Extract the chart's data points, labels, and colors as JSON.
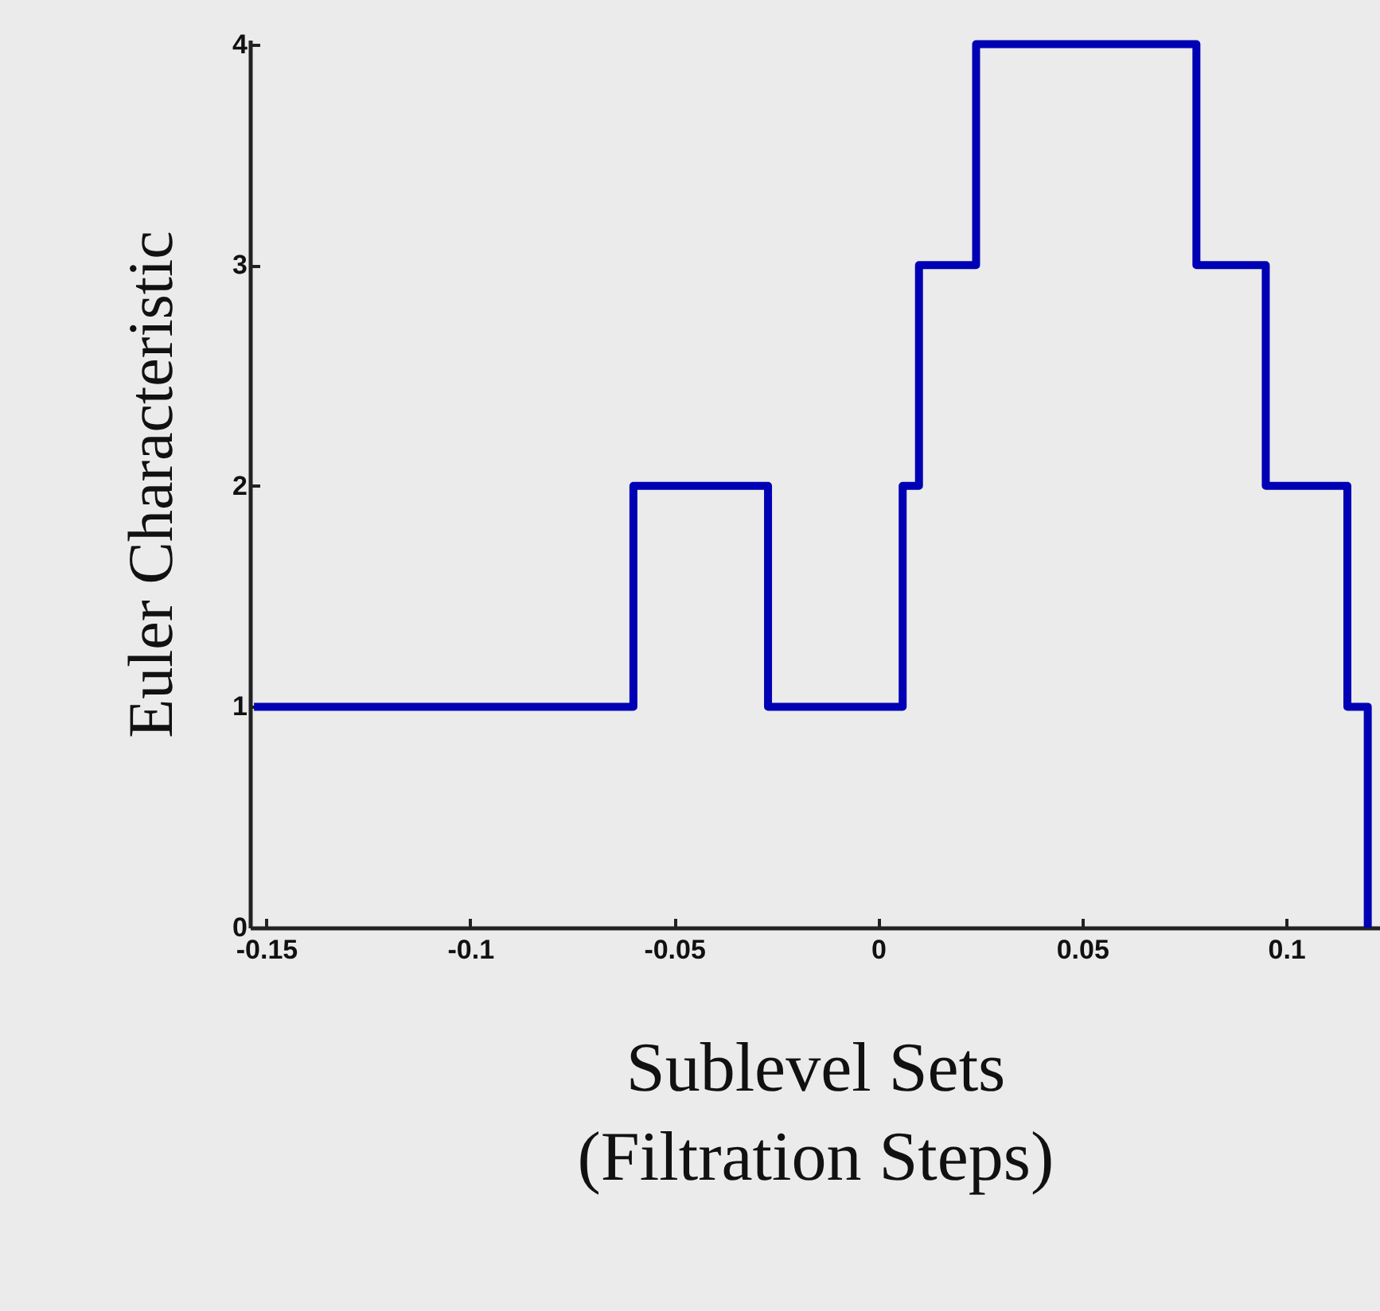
{
  "chart_data": {
    "type": "step",
    "xlabel": "Sublevel Sets\n(Filtration Steps)",
    "ylabel": "Euler Characteristic",
    "x": [
      -0.153,
      -0.06,
      -0.027,
      0.006,
      0.01,
      0.024,
      0.078,
      0.095,
      0.115,
      0.12
    ],
    "series": [
      {
        "color": "#0000b4",
        "values": [
          1,
          2,
          1,
          2,
          3,
          4,
          3,
          2,
          1,
          0
        ]
      }
    ],
    "xlim": [
      -0.154,
      0.123
    ],
    "xticks": [
      -0.15,
      -0.1,
      -0.05,
      0,
      0.05,
      0.1
    ],
    "ylim": [
      0,
      4.02
    ],
    "yticks": [
      0,
      1,
      2,
      3,
      4
    ],
    "grid": false
  }
}
